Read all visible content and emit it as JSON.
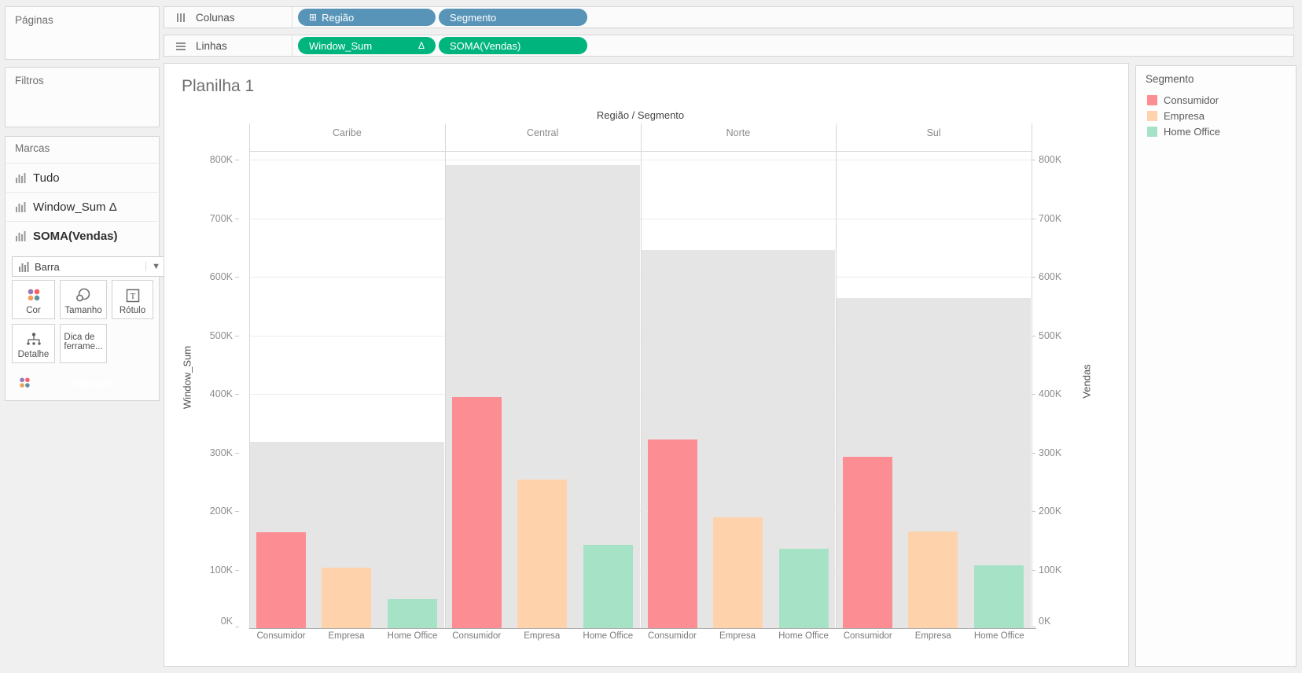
{
  "shelves": {
    "columns": {
      "label": "Colunas",
      "pills": [
        {
          "label": "Região",
          "has_plus_icon": true,
          "color": "#5794b8"
        },
        {
          "label": "Segmento",
          "has_plus_icon": false,
          "color": "#5794b8"
        }
      ]
    },
    "rows": {
      "label": "Linhas",
      "pills": [
        {
          "label": "Window_Sum",
          "suffix": "Δ",
          "color": "#00b57d"
        },
        {
          "label": "SOMA(Vendas)",
          "suffix": "",
          "color": "#00b57d"
        }
      ]
    }
  },
  "sidebar": {
    "pages_label": "Páginas",
    "filters_label": "Filtros",
    "marks": {
      "title": "Marcas",
      "items": [
        {
          "label": "Tudo",
          "suffix": "",
          "bold": false
        },
        {
          "label": "Window_Sum",
          "suffix": "Δ",
          "bold": false
        },
        {
          "label": "SOMA(Vendas)",
          "suffix": "",
          "bold": true
        }
      ],
      "mark_type": "Barra",
      "buttons": [
        {
          "label": "Cor",
          "icon": "color-icon"
        },
        {
          "label": "Tamanho",
          "icon": "size-icon"
        },
        {
          "label": "Rótulo",
          "icon": "label-icon"
        },
        {
          "label": "Detalhe",
          "icon": "detail-icon"
        },
        {
          "label": "Dica de ferrame...",
          "icon": "tooltip-icon"
        }
      ],
      "color_icon_dots": [
        "#9678b6",
        "#fa5f66",
        "#f2a05a",
        "#5e93a6"
      ],
      "encoding_pill": {
        "label": "Segmento",
        "color": "#5794b8"
      }
    }
  },
  "sheet": {
    "title": "Planilha 1"
  },
  "legend": {
    "title": "Segmento",
    "items": [
      {
        "label": "Consumidor",
        "color": "#fc8d93"
      },
      {
        "label": "Empresa",
        "color": "#fed2ab"
      },
      {
        "label": "Home Office",
        "color": "#a6e3c6"
      }
    ]
  },
  "chart_data": {
    "type": "bar",
    "title": "Região / Segmento",
    "facets": [
      "Caribe",
      "Central",
      "Norte",
      "Sul"
    ],
    "categories": [
      "Consumidor",
      "Empresa",
      "Home Office"
    ],
    "unit": "K",
    "series": [
      {
        "name": "Window_Sum",
        "role": "background-total-per-region",
        "color": "#e5e5e5",
        "values_K": [
          318,
          791,
          646,
          564
        ]
      },
      {
        "name": "SOMA(Vendas) - Consumidor",
        "color": "#fc8d93",
        "values_K": [
          164,
          395,
          322,
          292
        ]
      },
      {
        "name": "SOMA(Vendas) - Empresa",
        "color": "#fed2ab",
        "values_K": [
          104,
          254,
          189,
          165
        ]
      },
      {
        "name": "SOMA(Vendas) - Home Office",
        "color": "#a6e3c6",
        "values_K": [
          50,
          142,
          135,
          107
        ]
      }
    ],
    "y_axis": {
      "left_label": "Window_Sum",
      "right_label": "Vendas",
      "min_K": 0,
      "max_K": 800,
      "tick_step_K": 100,
      "tick_labels": [
        "0K",
        "100K",
        "200K",
        "300K",
        "400K",
        "500K",
        "600K",
        "700K",
        "800K"
      ],
      "grid": true
    },
    "legend_position": "right"
  }
}
